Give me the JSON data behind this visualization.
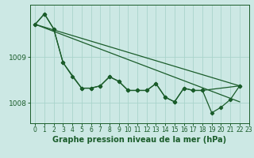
{
  "title": "Graphe pression niveau de la mer (hPa)",
  "background_color": "#cce8e4",
  "grid_color": "#aad4cc",
  "line_color": "#1a5c2a",
  "xlim": [
    -0.5,
    23
  ],
  "ylim": [
    1007.55,
    1010.15
  ],
  "yticks": [
    1008,
    1009
  ],
  "xticks": [
    0,
    1,
    2,
    3,
    4,
    5,
    6,
    7,
    8,
    9,
    10,
    11,
    12,
    13,
    14,
    15,
    16,
    17,
    18,
    19,
    20,
    21,
    22,
    23
  ],
  "tick_fontsize": 5.5,
  "ylabel_fontsize": 6.5,
  "xlabel_fontsize": 7,
  "line_width": 0.9,
  "marker_size": 2.2,
  "series1_x": [
    0,
    1,
    2,
    3,
    4,
    5,
    6,
    7,
    8,
    9,
    10,
    11,
    12,
    13,
    14,
    15,
    16,
    17,
    18,
    19,
    20,
    21,
    22
  ],
  "series1_y": [
    1009.72,
    1009.95,
    1009.62,
    1008.88,
    1008.58,
    1008.32,
    1008.32,
    1008.37,
    1008.57,
    1008.47,
    1008.27,
    1008.27,
    1008.27,
    1008.42,
    1008.12,
    1008.02,
    1008.32,
    1008.27,
    1008.27,
    1007.78,
    1007.9,
    1008.07,
    1008.37
  ],
  "series2_x": [
    0,
    1,
    2,
    3,
    5,
    6,
    7,
    8,
    9,
    10,
    11,
    12,
    13,
    14,
    15,
    16,
    17,
    18,
    22
  ],
  "series2_y": [
    1009.72,
    1009.95,
    1009.62,
    1008.88,
    1008.32,
    1008.32,
    1008.37,
    1008.57,
    1008.47,
    1008.27,
    1008.27,
    1008.27,
    1008.42,
    1008.12,
    1008.02,
    1008.32,
    1008.27,
    1008.27,
    1008.37
  ],
  "trend1_x": [
    0,
    22
  ],
  "trend1_y": [
    1009.72,
    1008.02
  ],
  "trend2_x": [
    0,
    22
  ],
  "trend2_y": [
    1009.72,
    1008.37
  ]
}
